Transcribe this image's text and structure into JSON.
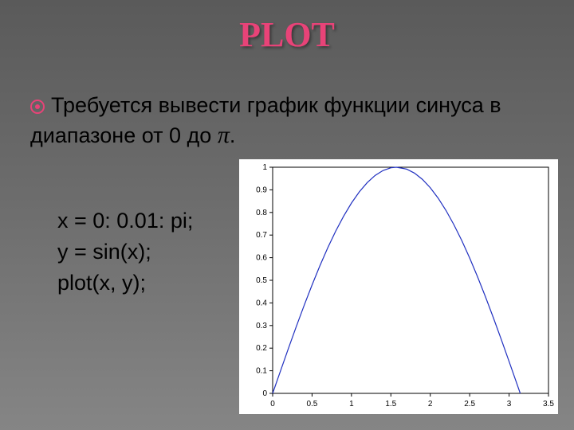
{
  "title": "PLOT",
  "title_color": "#e84378",
  "description": {
    "text_before": "Требуется вывести график функции синуса в диапазоне от 0 до",
    "pi_symbol": "π",
    "text_after": "."
  },
  "code": {
    "line1": "x = 0: 0.01: pi;",
    "line2": "y = sin(x);",
    "line3": "plot(x, y);"
  },
  "chart": {
    "type": "line",
    "background_color": "#ffffff",
    "plot_bg": "#ffffff",
    "axis_color": "#000000",
    "tick_color": "#000000",
    "line_color": "#2030c0",
    "line_width": 1.2,
    "tick_fontsize": 10,
    "xlim": [
      0,
      3.5
    ],
    "ylim": [
      0,
      1
    ],
    "xticks": [
      0,
      0.5,
      1,
      1.5,
      2,
      2.5,
      3,
      3.5
    ],
    "yticks": [
      0,
      0.1,
      0.2,
      0.3,
      0.4,
      0.5,
      0.6,
      0.7,
      0.8,
      0.9,
      1
    ],
    "xtick_labels": [
      "0",
      "0.5",
      "1",
      "1.5",
      "2",
      "2.5",
      "3",
      "3.5"
    ],
    "ytick_labels": [
      "0",
      "0.1",
      "0.2",
      "0.3",
      "0.4",
      "0.5",
      "0.6",
      "0.7",
      "0.8",
      "0.9",
      "1"
    ],
    "data_x": [
      0,
      0.1,
      0.2,
      0.3,
      0.4,
      0.5,
      0.6,
      0.7,
      0.8,
      0.9,
      1.0,
      1.1,
      1.2,
      1.3,
      1.4,
      1.5,
      1.5708,
      1.7,
      1.8,
      1.9,
      2.0,
      2.1,
      2.2,
      2.3,
      2.4,
      2.5,
      2.6,
      2.7,
      2.8,
      2.9,
      3.0,
      3.1,
      3.1416
    ],
    "data_y": [
      0,
      0.0998,
      0.1987,
      0.2955,
      0.3894,
      0.4794,
      0.5646,
      0.6442,
      0.7174,
      0.7833,
      0.8415,
      0.8912,
      0.932,
      0.9636,
      0.9854,
      0.9975,
      1.0,
      0.9917,
      0.9738,
      0.9463,
      0.9093,
      0.8632,
      0.8085,
      0.7457,
      0.6755,
      0.5985,
      0.5155,
      0.4274,
      0.335,
      0.2392,
      0.1411,
      0.0416,
      0
    ]
  }
}
